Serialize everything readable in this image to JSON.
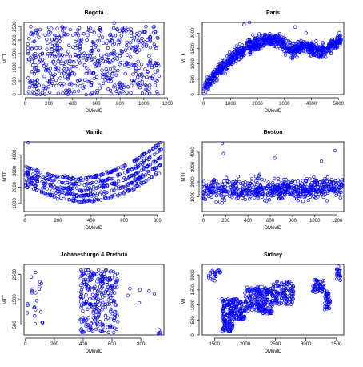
{
  "style": {
    "point_color": "#0000ff"
  },
  "chart_data": [
    {
      "type": "scatter",
      "title": "Bogotá",
      "xlabel": "DMovID",
      "ylabel": "MTT",
      "xlim": [
        -10,
        1170
      ],
      "ylim": [
        0,
        2650
      ],
      "xticks": [
        0,
        200,
        400,
        600,
        800,
        1000,
        1200
      ],
      "yticks": [
        0,
        500,
        1000,
        1500,
        2000,
        2500
      ],
      "point_profile": {
        "shape": "uniform",
        "x_range": [
          20,
          1130
        ],
        "y_range": [
          0,
          2500
        ],
        "point_count": 560,
        "outliers": [
          {
            "x": 750,
            "y": 2630
          }
        ]
      }
    },
    {
      "type": "scatter",
      "title": "Paris",
      "xlabel": "DMovID",
      "ylabel": "MTT",
      "xlim": [
        -50,
        5200
      ],
      "ylim": [
        0,
        2350
      ],
      "xticks": [
        0,
        1000,
        2000,
        3000,
        4000,
        5000
      ],
      "yticks": [
        0,
        500,
        1000,
        1500,
        2000
      ],
      "point_profile": {
        "shape": "trend",
        "point_count": 900,
        "trend": [
          [
            0,
            200
          ],
          [
            300,
            500
          ],
          [
            700,
            900
          ],
          [
            1200,
            1300
          ],
          [
            1800,
            1600
          ],
          [
            2300,
            1800
          ],
          [
            2800,
            1750
          ],
          [
            3300,
            1400
          ],
          [
            3700,
            1600
          ],
          [
            4300,
            1400
          ],
          [
            4600,
            1500
          ],
          [
            5100,
            1800
          ]
        ],
        "spread": 220,
        "outliers": [
          {
            "x": 1500,
            "y": 2280
          },
          {
            "x": 1700,
            "y": 2350
          },
          {
            "x": 3400,
            "y": 2200
          },
          {
            "x": 3800,
            "y": 2000
          }
        ]
      }
    },
    {
      "type": "scatter",
      "title": "Manila",
      "xlabel": "DMovID",
      "ylabel": "MTT",
      "xlim": [
        -5,
        840
      ],
      "ylim": [
        500,
        4800
      ],
      "xticks": [
        0,
        200,
        400,
        600,
        800
      ],
      "yticks": [
        1000,
        2000,
        3000,
        4000
      ],
      "point_profile": {
        "shape": "bands",
        "point_count": 560,
        "trend": [
          [
            0,
            2700
          ],
          [
            100,
            2300
          ],
          [
            200,
            2000
          ],
          [
            350,
            1800
          ],
          [
            500,
            2100
          ],
          [
            650,
            2700
          ],
          [
            800,
            3700
          ],
          [
            830,
            3900
          ]
        ],
        "band_offsets": [
          -900,
          -450,
          0,
          450,
          900
        ],
        "outliers": [
          {
            "x": 20,
            "y": 4750
          },
          {
            "x": 810,
            "y": 4300
          }
        ]
      }
    },
    {
      "type": "scatter",
      "title": "Boston",
      "xlabel": "DMovID",
      "ylabel": "MTT",
      "xlim": [
        -10,
        1260
      ],
      "ylim": [
        0,
        4700
      ],
      "xticks": [
        0,
        200,
        400,
        600,
        800,
        1000,
        1200
      ],
      "yticks": [
        1000,
        2000,
        3000,
        4000
      ],
      "point_profile": {
        "shape": "band",
        "point_count": 620,
        "trend": [
          [
            0,
            1500
          ],
          [
            600,
            1500
          ],
          [
            1250,
            1600
          ]
        ],
        "spread": 700,
        "outliers": [
          {
            "x": 170,
            "y": 4600
          },
          {
            "x": 1180,
            "y": 4100
          },
          {
            "x": 180,
            "y": 3900
          },
          {
            "x": 640,
            "y": 3600
          },
          {
            "x": 1060,
            "y": 3400
          }
        ]
      }
    },
    {
      "type": "scatter",
      "title": "Johanesburgo & Pretoria",
      "xlabel": "DMovID",
      "ylabel": "MTT",
      "xlim": [
        -10,
        960
      ],
      "ylim": [
        100,
        2900
      ],
      "xticks": [
        0,
        200,
        400,
        600,
        800
      ],
      "yticks": [
        500,
        1500,
        2500
      ],
      "point_profile": {
        "shape": "clusters",
        "point_count": 320,
        "clusters": [
          {
            "x": [
              380,
              640
            ],
            "y": [
              200,
              2700
            ],
            "n": 270
          },
          {
            "x": [
              0,
              120
            ],
            "y": [
              500,
              2600
            ],
            "n": 22
          },
          {
            "x": [
              700,
              900
            ],
            "y": [
              1100,
              2000
            ],
            "n": 6
          },
          {
            "x": [
              920,
              950
            ],
            "y": [
              150,
              350
            ],
            "n": 4
          }
        ]
      }
    },
    {
      "type": "scatter",
      "title": "Sidney",
      "xlabel": "DMovID",
      "ylabel": "MTT",
      "xlim": [
        1300,
        3620
      ],
      "ylim": [
        0,
        2350
      ],
      "xticks": [
        1500,
        2000,
        2500,
        3000,
        3500
      ],
      "yticks": [
        0,
        500,
        1000,
        1500,
        2000
      ],
      "point_profile": {
        "shape": "segments",
        "point_count": 700,
        "segments": [
          {
            "x": [
              1400,
              1600
            ],
            "y": [
              1800,
              2200
            ],
            "n": 22
          },
          {
            "x": [
              1620,
              1800
            ],
            "y": [
              100,
              1200
            ],
            "n": 130
          },
          {
            "x": [
              1800,
              2000
            ],
            "y": [
              500,
              1200
            ],
            "n": 90
          },
          {
            "x": [
              2000,
              2250
            ],
            "y": [
              800,
              1600
            ],
            "n": 110
          },
          {
            "x": [
              2250,
              2450
            ],
            "y": [
              700,
              1600
            ],
            "n": 100
          },
          {
            "x": [
              2450,
              2800
            ],
            "y": [
              1000,
              1800
            ],
            "n": 120
          },
          {
            "x": [
              3100,
              3300
            ],
            "y": [
              1400,
              1850
            ],
            "n": 50
          },
          {
            "x": [
              3300,
              3400
            ],
            "y": [
              800,
              1500
            ],
            "n": 40
          },
          {
            "x": [
              3500,
              3600
            ],
            "y": [
              1800,
              2300
            ],
            "n": 20
          }
        ]
      }
    }
  ]
}
